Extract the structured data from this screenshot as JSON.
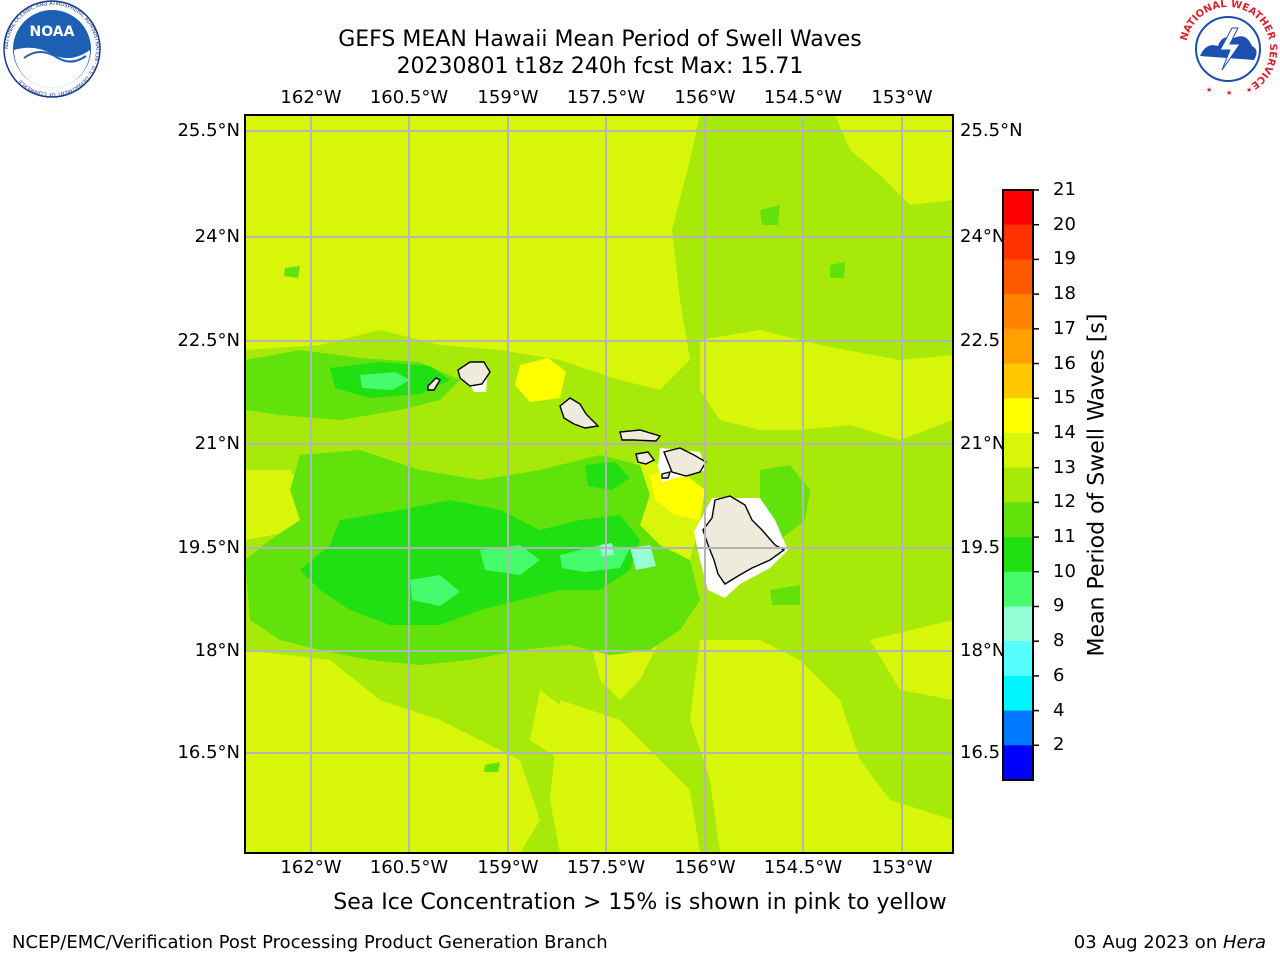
{
  "header": {
    "title_line1": "GEFS MEAN Hawaii Mean Period of Swell Waves",
    "title_line2": "20230801 t18z 240h fcst   Max: 15.71"
  },
  "logos": {
    "noaa_text": "NOAA",
    "noaa_ring_text": "NATIONAL OCEANIC AND ATMOSPHERIC ADMINISTRATION · U.S. DEPARTMENT OF COMMERCE",
    "nws_ring_text": "NATIONAL WEATHER SERVICE"
  },
  "map": {
    "lon_ticks": [
      "162°W",
      "160.5°W",
      "159°W",
      "157.5°W",
      "156°W",
      "154.5°W",
      "153°W"
    ],
    "lat_ticks_left": [
      "25.5°N",
      "24°N",
      "22.5°N",
      "21°N",
      "19.5°N",
      "18°N",
      "16.5°N"
    ],
    "lat_ticks_right": [
      "25.5°N",
      "24°N",
      "22.5",
      "21°N",
      "19.5",
      "18°N",
      "16.5"
    ],
    "background_color": "#a7ea09",
    "grid_color": "#b4b4b4",
    "land_color": "#eeeadc",
    "islands": [
      "Kauai",
      "Niihau",
      "Oahu",
      "Molokai",
      "Lanai",
      "Maui",
      "Hawaii"
    ]
  },
  "colorbar": {
    "title": "Mean Period of Swell Waves [s]",
    "levels": [
      "21",
      "20",
      "19",
      "18",
      "17",
      "16",
      "15",
      "14",
      "13",
      "12",
      "11",
      "10",
      "9",
      "8",
      "6",
      "4",
      "2"
    ],
    "colors_top_to_bottom": [
      "#ff0000",
      "#ff3200",
      "#ff5a00",
      "#ff8200",
      "#ffa000",
      "#ffc800",
      "#ffff00",
      "#d8f60a",
      "#a7ea09",
      "#60e20a",
      "#20df12",
      "#44fc6c",
      "#97ffd8",
      "#56ffff",
      "#00f6ff",
      "#0078ff",
      "#0000ff"
    ]
  },
  "note": "Sea Ice Concentration > 15% is shown in pink to yellow",
  "footer": {
    "left": "NCEP/EMC/Verification Post Processing Product Generation Branch",
    "right_date": "03 Aug 2023 on ",
    "right_host": "Hera"
  }
}
